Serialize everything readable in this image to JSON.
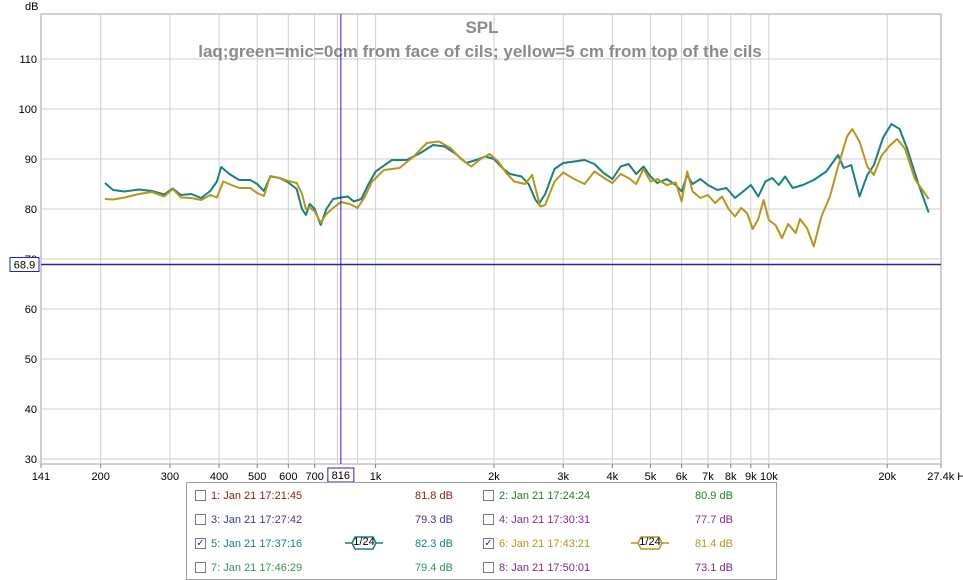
{
  "chart_data": {
    "type": "line",
    "title": "SPL",
    "subtitle": "laq;green=mic=0cm from face of cils; yellow=5 cm from top of the cils",
    "ylabel": "dB",
    "xscale": "log",
    "xlim": [
      141,
      27400
    ],
    "ylim": [
      29,
      119
    ],
    "x_ticks": [
      {
        "v": 141,
        "label": "141"
      },
      {
        "v": 200,
        "label": "200"
      },
      {
        "v": 300,
        "label": "300"
      },
      {
        "v": 400,
        "label": "400"
      },
      {
        "v": 500,
        "label": "500"
      },
      {
        "v": 600,
        "label": "600"
      },
      {
        "v": 700,
        "label": "700"
      },
      {
        "v": 1000,
        "label": "1k"
      },
      {
        "v": 2000,
        "label": "2k"
      },
      {
        "v": 3000,
        "label": "3k"
      },
      {
        "v": 4000,
        "label": "4k"
      },
      {
        "v": 5000,
        "label": "5k"
      },
      {
        "v": 6000,
        "label": "6k"
      },
      {
        "v": 7000,
        "label": "7k"
      },
      {
        "v": 8000,
        "label": "8k"
      },
      {
        "v": 9000,
        "label": "9k"
      },
      {
        "v": 10000,
        "label": "10k"
      },
      {
        "v": 20000,
        "label": "20k"
      },
      {
        "v": 27400,
        "label": "27.4k Hz"
      }
    ],
    "y_ticks": [
      30,
      40,
      50,
      60,
      70,
      80,
      90,
      100,
      110
    ],
    "grid": true,
    "cursor": {
      "x": 816,
      "x_label": "816",
      "y": 68.9,
      "y_label": "68.9"
    },
    "series": [
      {
        "name": "5: Jan 21 17:37:16",
        "color": "#1a8080",
        "points": [
          [
            205,
            85.2
          ],
          [
            215,
            83.8
          ],
          [
            230,
            83.5
          ],
          [
            250,
            83.9
          ],
          [
            270,
            83.6
          ],
          [
            290,
            82.9
          ],
          [
            305,
            84.1
          ],
          [
            320,
            82.8
          ],
          [
            340,
            83.0
          ],
          [
            360,
            82.2
          ],
          [
            380,
            83.6
          ],
          [
            395,
            85.5
          ],
          [
            405,
            88.4
          ],
          [
            425,
            87.0
          ],
          [
            450,
            85.8
          ],
          [
            480,
            85.8
          ],
          [
            500,
            85.0
          ],
          [
            520,
            83.6
          ],
          [
            540,
            86.5
          ],
          [
            570,
            86.2
          ],
          [
            600,
            85.3
          ],
          [
            630,
            84.0
          ],
          [
            650,
            80.0
          ],
          [
            665,
            78.8
          ],
          [
            680,
            81.0
          ],
          [
            700,
            80.0
          ],
          [
            725,
            76.8
          ],
          [
            750,
            80.0
          ],
          [
            780,
            82.0
          ],
          [
            816,
            82.3
          ],
          [
            850,
            82.5
          ],
          [
            880,
            81.5
          ],
          [
            920,
            82.0
          ],
          [
            960,
            85.0
          ],
          [
            1000,
            87.5
          ],
          [
            1100,
            89.8
          ],
          [
            1200,
            89.8
          ],
          [
            1300,
            91.2
          ],
          [
            1400,
            92.8
          ],
          [
            1500,
            92.5
          ],
          [
            1600,
            91.0
          ],
          [
            1700,
            89.2
          ],
          [
            1800,
            89.8
          ],
          [
            1900,
            90.5
          ],
          [
            2000,
            90.0
          ],
          [
            2100,
            88.2
          ],
          [
            2200,
            87.0
          ],
          [
            2350,
            86.5
          ],
          [
            2450,
            85.0
          ],
          [
            2550,
            81.8
          ],
          [
            2600,
            81.0
          ],
          [
            2700,
            83.0
          ],
          [
            2850,
            88.0
          ],
          [
            3000,
            89.2
          ],
          [
            3200,
            89.5
          ],
          [
            3400,
            89.8
          ],
          [
            3600,
            89.0
          ],
          [
            3800,
            87.2
          ],
          [
            4000,
            86.0
          ],
          [
            4200,
            88.5
          ],
          [
            4400,
            89.0
          ],
          [
            4600,
            87.0
          ],
          [
            4800,
            88.5
          ],
          [
            5000,
            86.5
          ],
          [
            5200,
            85.2
          ],
          [
            5500,
            86.0
          ],
          [
            5800,
            84.8
          ],
          [
            6000,
            83.5
          ],
          [
            6200,
            86.8
          ],
          [
            6400,
            85.0
          ],
          [
            6700,
            86.0
          ],
          [
            7000,
            84.8
          ],
          [
            7400,
            83.8
          ],
          [
            7800,
            84.2
          ],
          [
            8200,
            82.2
          ],
          [
            8600,
            83.5
          ],
          [
            9000,
            84.8
          ],
          [
            9400,
            82.5
          ],
          [
            9800,
            85.5
          ],
          [
            10200,
            86.2
          ],
          [
            10600,
            84.8
          ],
          [
            11000,
            86.5
          ],
          [
            11500,
            84.2
          ],
          [
            12200,
            84.8
          ],
          [
            13000,
            85.8
          ],
          [
            14000,
            87.5
          ],
          [
            15000,
            90.8
          ],
          [
            15500,
            88.2
          ],
          [
            16200,
            88.8
          ],
          [
            17000,
            82.5
          ],
          [
            17800,
            86.8
          ],
          [
            18500,
            88.8
          ],
          [
            19500,
            94.2
          ],
          [
            20500,
            97.0
          ],
          [
            21500,
            96.0
          ],
          [
            22500,
            92.0
          ],
          [
            24000,
            85.0
          ],
          [
            25500,
            79.3
          ]
        ]
      },
      {
        "name": "6: Jan 21 17:43:21",
        "color": "#b8961a",
        "points": [
          [
            205,
            82.0
          ],
          [
            215,
            81.9
          ],
          [
            230,
            82.3
          ],
          [
            250,
            83.0
          ],
          [
            270,
            83.4
          ],
          [
            290,
            82.5
          ],
          [
            305,
            84.0
          ],
          [
            320,
            82.3
          ],
          [
            340,
            82.2
          ],
          [
            360,
            81.8
          ],
          [
            380,
            82.8
          ],
          [
            395,
            82.3
          ],
          [
            410,
            85.5
          ],
          [
            430,
            84.8
          ],
          [
            450,
            84.2
          ],
          [
            480,
            84.2
          ],
          [
            500,
            83.2
          ],
          [
            520,
            82.6
          ],
          [
            540,
            86.6
          ],
          [
            570,
            86.2
          ],
          [
            600,
            85.6
          ],
          [
            630,
            85.2
          ],
          [
            650,
            83.0
          ],
          [
            665,
            80.0
          ],
          [
            680,
            80.3
          ],
          [
            700,
            79.5
          ],
          [
            725,
            77.3
          ],
          [
            750,
            79.0
          ],
          [
            780,
            80.2
          ],
          [
            816,
            81.4
          ],
          [
            860,
            81.0
          ],
          [
            900,
            80.2
          ],
          [
            940,
            82.5
          ],
          [
            980,
            85.5
          ],
          [
            1050,
            87.8
          ],
          [
            1150,
            88.2
          ],
          [
            1250,
            90.5
          ],
          [
            1350,
            93.2
          ],
          [
            1450,
            93.5
          ],
          [
            1550,
            92.2
          ],
          [
            1650,
            90.0
          ],
          [
            1750,
            88.5
          ],
          [
            1850,
            90.0
          ],
          [
            1950,
            91.0
          ],
          [
            2050,
            89.5
          ],
          [
            2150,
            87.2
          ],
          [
            2250,
            85.5
          ],
          [
            2400,
            85.0
          ],
          [
            2500,
            86.8
          ],
          [
            2620,
            80.5
          ],
          [
            2700,
            80.8
          ],
          [
            2850,
            85.5
          ],
          [
            3000,
            87.3
          ],
          [
            3200,
            86.0
          ],
          [
            3400,
            85.0
          ],
          [
            3600,
            87.5
          ],
          [
            3850,
            86.0
          ],
          [
            4000,
            85.2
          ],
          [
            4200,
            87.0
          ],
          [
            4400,
            86.2
          ],
          [
            4600,
            85.0
          ],
          [
            4800,
            88.0
          ],
          [
            5000,
            85.5
          ],
          [
            5200,
            86.0
          ],
          [
            5500,
            84.8
          ],
          [
            5800,
            85.3
          ],
          [
            6000,
            81.5
          ],
          [
            6200,
            87.5
          ],
          [
            6400,
            83.5
          ],
          [
            6700,
            82.2
          ],
          [
            7000,
            82.8
          ],
          [
            7300,
            81.2
          ],
          [
            7600,
            82.5
          ],
          [
            7900,
            80.0
          ],
          [
            8200,
            78.5
          ],
          [
            8500,
            80.2
          ],
          [
            8800,
            79.2
          ],
          [
            9100,
            76.0
          ],
          [
            9400,
            78.0
          ],
          [
            9700,
            81.8
          ],
          [
            10000,
            77.8
          ],
          [
            10400,
            76.8
          ],
          [
            10800,
            74.2
          ],
          [
            11200,
            77.0
          ],
          [
            11700,
            75.2
          ],
          [
            12000,
            78.0
          ],
          [
            12500,
            76.2
          ],
          [
            13000,
            72.5
          ],
          [
            13600,
            78.5
          ],
          [
            14300,
            82.5
          ],
          [
            15000,
            88.5
          ],
          [
            15800,
            94.5
          ],
          [
            16300,
            96.0
          ],
          [
            17000,
            93.5
          ],
          [
            17800,
            88.5
          ],
          [
            18500,
            86.8
          ],
          [
            19300,
            90.5
          ],
          [
            20200,
            92.5
          ],
          [
            21200,
            94.0
          ],
          [
            22200,
            92.0
          ],
          [
            23500,
            86.0
          ],
          [
            25500,
            82.0
          ]
        ]
      }
    ]
  },
  "legend": {
    "items": [
      {
        "label": "1: Jan 21 17:21:45",
        "value": "81.8 dB",
        "checked": false,
        "color": "#8b1a1a",
        "smoothing": ""
      },
      {
        "label": "2: Jan 21 17:24:24",
        "value": "80.9 dB",
        "checked": false,
        "color": "#2a7a2a",
        "smoothing": ""
      },
      {
        "label": "3: Jan 21 17:27:42",
        "value": "79.3 dB",
        "checked": false,
        "color": "#3a3a9a",
        "smoothing": ""
      },
      {
        "label": "4: Jan 21 17:30:31",
        "value": "77.7 dB",
        "checked": false,
        "color": "#8a2a8a",
        "smoothing": ""
      },
      {
        "label": "5: Jan 21 17:37:16",
        "value": "82.3 dB",
        "checked": true,
        "color": "#1a8080",
        "smoothing": "1/24"
      },
      {
        "label": "6: Jan 21 17:43:21",
        "value": "81.4 dB",
        "checked": true,
        "color": "#b8961a",
        "smoothing": "1/24"
      },
      {
        "label": "7: Jan 21 17:46:29",
        "value": "79.4 dB",
        "checked": false,
        "color": "#2a9a5a",
        "smoothing": ""
      },
      {
        "label": "8: Jan 21 17:50:01",
        "value": "73.1 dB",
        "checked": false,
        "color": "#7a2a8a",
        "smoothing": ""
      }
    ]
  }
}
